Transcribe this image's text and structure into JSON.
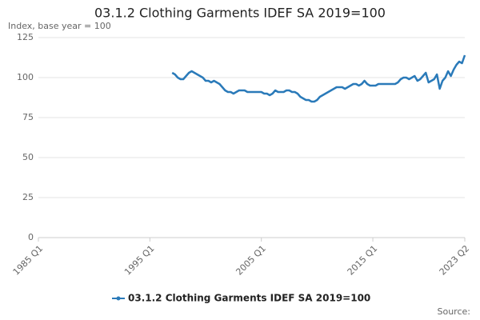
{
  "chart_data": {
    "type": "line",
    "title": "03.1.2 Clothing Garments IDEF SA 2019=100",
    "y_label": "Index, base year = 100",
    "source": "Source:",
    "categories": [
      "1985 Q1",
      null,
      null,
      null,
      null,
      null,
      null,
      null,
      null,
      null,
      null,
      null,
      null,
      null,
      null,
      null,
      null,
      null,
      null,
      null,
      null,
      null,
      null,
      null,
      null,
      null,
      null,
      null,
      null,
      null,
      null,
      null,
      null,
      null,
      null,
      null,
      null,
      null,
      null,
      null,
      "1995 Q1",
      null,
      null,
      null,
      null,
      null,
      null,
      null,
      null,
      null,
      null,
      null,
      null,
      null,
      null,
      null,
      null,
      null,
      null,
      null,
      null,
      null,
      null,
      null,
      null,
      null,
      null,
      null,
      null,
      null,
      null,
      null,
      null,
      null,
      null,
      null,
      null,
      null,
      null,
      null,
      "2005 Q1",
      null,
      null,
      null,
      null,
      null,
      null,
      null,
      null,
      null,
      null,
      null,
      null,
      null,
      null,
      null,
      null,
      null,
      null,
      null,
      null,
      null,
      null,
      null,
      null,
      null,
      null,
      null,
      null,
      null,
      null,
      null,
      null,
      null,
      null,
      null,
      null,
      null,
      null,
      null,
      "2015 Q1",
      null,
      null,
      null,
      null,
      null,
      null,
      null,
      null,
      null,
      null,
      null,
      null,
      null,
      null,
      null,
      null,
      null,
      null,
      null,
      null,
      null,
      null,
      null,
      null,
      null,
      null,
      null,
      null,
      null,
      null,
      null,
      null,
      "2023 Q2"
    ],
    "series": [
      {
        "name": "03.1.2 Clothing Garments IDEF SA 2019=100",
        "color": "#2a7ab9",
        "values": [
          null,
          null,
          null,
          null,
          null,
          null,
          null,
          null,
          null,
          null,
          null,
          null,
          null,
          null,
          null,
          null,
          null,
          null,
          null,
          null,
          null,
          null,
          null,
          null,
          null,
          null,
          null,
          null,
          null,
          null,
          null,
          null,
          null,
          null,
          null,
          null,
          null,
          null,
          null,
          null,
          null,
          null,
          null,
          null,
          null,
          null,
          null,
          null,
          103,
          102,
          100,
          99,
          99,
          101,
          103,
          104,
          103,
          102,
          101,
          100,
          98,
          98,
          97,
          98,
          97,
          96,
          94,
          92,
          91,
          91,
          90,
          91,
          92,
          92,
          92,
          91,
          91,
          91,
          91,
          91,
          91,
          90,
          90,
          89,
          90,
          92,
          91,
          91,
          91,
          92,
          92,
          91,
          91,
          90,
          88,
          87,
          86,
          86,
          85,
          85,
          86,
          88,
          89,
          90,
          91,
          92,
          93,
          94,
          94,
          94,
          93,
          94,
          95,
          96,
          96,
          95,
          96,
          98,
          96,
          95,
          95,
          95,
          96,
          96,
          96,
          96,
          96,
          96,
          96,
          97,
          99,
          100,
          100,
          99,
          100,
          101,
          98,
          99,
          101,
          103,
          97,
          98,
          99,
          102,
          93,
          98,
          100,
          104,
          101,
          105,
          108,
          110,
          109,
          114
        ]
      }
    ],
    "ylim": [
      0,
      125
    ],
    "yticks": [
      0,
      25,
      50,
      75,
      100,
      125
    ],
    "grid": true,
    "legend": "bottom"
  }
}
